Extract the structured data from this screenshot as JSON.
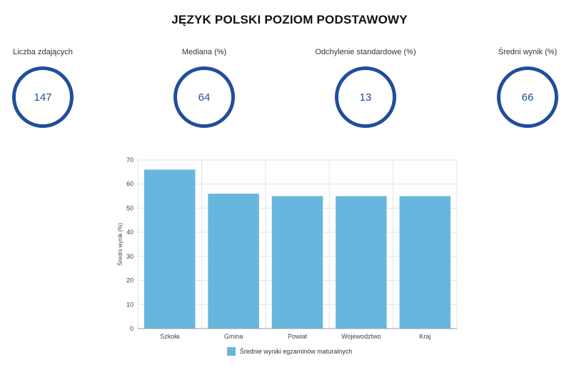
{
  "page": {
    "title": "JĘZYK POLSKI POZIOM PODSTAWOWY"
  },
  "stats": [
    {
      "label": "Liczba zdających",
      "value": "147"
    },
    {
      "label": "Mediana (%)",
      "value": "64"
    },
    {
      "label": "Odchylenie standardowe (%)",
      "value": "13"
    },
    {
      "label": "Średni wynik (%)",
      "value": "66"
    }
  ],
  "colors": {
    "accent": "#1f4e9c",
    "bar": "#68b6dd",
    "grid": "#e3e3e3"
  },
  "chart_data": {
    "type": "bar",
    "categories": [
      "Szkoła",
      "Gmina",
      "Powiat",
      "Wojewodztwo",
      "Kraj"
    ],
    "series": [
      {
        "name": "Średnie wyniki egzaminów maturalnych",
        "values": [
          66,
          56,
          55,
          55,
          55
        ]
      }
    ],
    "xlabel": "",
    "ylabel": "Średni wynik (%)",
    "ylim": [
      0,
      70
    ],
    "yticks": [
      0,
      10,
      20,
      30,
      40,
      50,
      60,
      70
    ],
    "grid": true,
    "legend": "bottom"
  }
}
